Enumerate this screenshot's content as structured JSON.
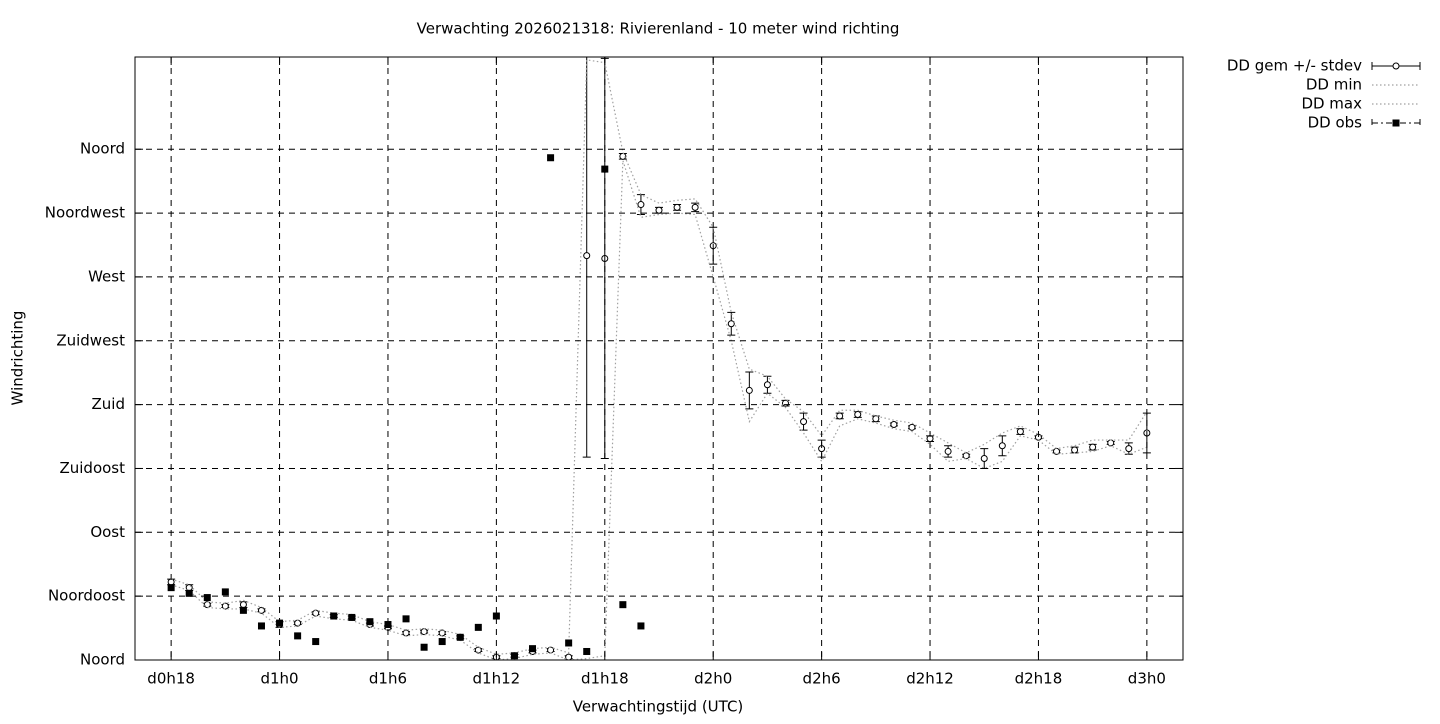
{
  "chart_data": {
    "type": "errorbar-line",
    "title": "Verwachting 2026021318: Rivierenland - 10 meter wind richting",
    "x_label": "Verwachtingstijd (UTC)",
    "y_label": "Windrichting",
    "x": [
      18,
      19,
      20,
      21,
      22,
      23,
      24,
      25,
      26,
      27,
      28,
      29,
      30,
      31,
      32,
      33,
      34,
      35,
      36,
      37,
      38,
      39,
      40,
      41,
      42,
      43,
      44,
      45,
      46,
      47,
      48,
      49,
      50,
      51,
      52,
      53,
      54,
      55,
      56,
      57,
      58,
      59,
      60,
      61,
      62,
      63,
      64,
      65,
      66,
      67,
      68,
      69,
      70,
      71,
      72
    ],
    "xlim": [
      16,
      74
    ],
    "xticks": [
      {
        "value": 18,
        "label": "d0h18"
      },
      {
        "value": 24,
        "label": "d1h0"
      },
      {
        "value": 30,
        "label": "d1h6"
      },
      {
        "value": 36,
        "label": "d1h12"
      },
      {
        "value": 42,
        "label": "d1h18"
      },
      {
        "value": 48,
        "label": "d2h0"
      },
      {
        "value": 54,
        "label": "d2h6"
      },
      {
        "value": 60,
        "label": "d2h12"
      },
      {
        "value": 66,
        "label": "d2h18"
      },
      {
        "value": 72,
        "label": "d3h0"
      }
    ],
    "ylim": [
      0,
      425
    ],
    "yticks": [
      {
        "value": 0,
        "label": "Noord"
      },
      {
        "value": 45,
        "label": "Noordoost"
      },
      {
        "value": 90,
        "label": "Oost"
      },
      {
        "value": 135,
        "label": "Zuidoost"
      },
      {
        "value": 180,
        "label": "Zuid"
      },
      {
        "value": 225,
        "label": "Zuidwest"
      },
      {
        "value": 270,
        "label": "West"
      },
      {
        "value": 315,
        "label": "Noordwest"
      },
      {
        "value": 360,
        "label": "Noord"
      }
    ],
    "grid": true,
    "legend": "outside-top-right",
    "series": [
      {
        "name": "DD gem +/- stdev",
        "color": "#000000",
        "style": "errorbars",
        "values": [
          55,
          51,
          39,
          38,
          39,
          35,
          25,
          26,
          33,
          31,
          30,
          25,
          23,
          19,
          20,
          19,
          16,
          7,
          2,
          3,
          6,
          7,
          2,
          285,
          283,
          355,
          321,
          317,
          319,
          319,
          292,
          237,
          190,
          194,
          181,
          168,
          149,
          172,
          173,
          170,
          166,
          164,
          156,
          147,
          144,
          142,
          151,
          161,
          157,
          147,
          148,
          150,
          153,
          149,
          160
        ],
        "stdev": [
          2,
          2,
          1,
          1,
          2,
          1,
          2,
          1,
          1,
          1,
          1,
          1,
          1,
          1,
          1,
          1,
          1,
          1,
          1,
          1,
          1,
          1,
          1,
          142,
          141,
          2,
          7,
          2,
          2,
          3,
          13,
          8,
          13,
          6,
          2,
          6,
          6,
          2,
          2,
          2,
          1,
          1,
          2,
          4,
          1,
          7,
          7,
          2,
          1,
          1,
          2,
          2,
          1,
          4,
          14
        ]
      },
      {
        "name": "DD min",
        "color": "#a0a0a0",
        "style": "dotted",
        "values": [
          53,
          49,
          37,
          36,
          36,
          33,
          23,
          24,
          31,
          29,
          28,
          23,
          21,
          17,
          18,
          17,
          14,
          5,
          0,
          1,
          4,
          5,
          0,
          1,
          3,
          352,
          312,
          314,
          315,
          314,
          270,
          225,
          168,
          188,
          178,
          160,
          140,
          165,
          170,
          167,
          163,
          161,
          152,
          140,
          142,
          135,
          140,
          158,
          155,
          145,
          146,
          147,
          151,
          145,
          150
        ]
      },
      {
        "name": "DD max",
        "color": "#a0a0a0",
        "style": "dotted",
        "values": [
          57,
          53,
          41,
          40,
          42,
          37,
          27,
          28,
          35,
          33,
          32,
          27,
          25,
          21,
          22,
          21,
          18,
          9,
          4,
          5,
          8,
          9,
          5,
          423,
          421,
          358,
          328,
          322,
          324,
          325,
          305,
          245,
          205,
          200,
          184,
          175,
          158,
          176,
          176,
          172,
          169,
          167,
          160,
          153,
          146,
          152,
          160,
          165,
          159,
          149,
          151,
          155,
          155,
          155,
          175
        ]
      },
      {
        "name": "DD obs",
        "color": "#000000",
        "style": "points",
        "values": [
          51,
          47,
          44,
          48,
          35,
          24,
          26,
          17,
          13,
          31,
          30,
          27,
          25,
          29,
          9,
          13,
          16,
          23,
          31,
          3,
          8,
          354,
          12,
          6,
          346,
          39,
          24,
          null,
          null,
          null,
          null,
          null,
          null,
          null,
          null,
          null,
          null,
          null,
          null,
          null,
          null,
          null,
          null,
          null,
          null,
          null,
          null,
          null,
          null,
          null,
          null,
          null,
          null,
          null,
          null
        ]
      }
    ]
  }
}
